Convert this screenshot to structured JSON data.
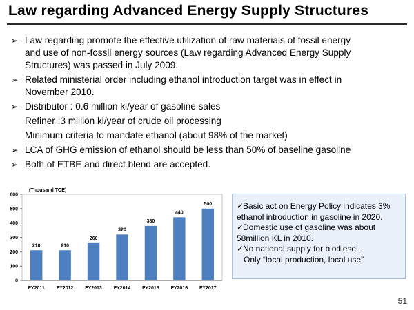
{
  "slide": {
    "title": "Law regarding Advanced Energy Supply Structures",
    "page_number": "51"
  },
  "bullets": [
    {
      "type": "bullet",
      "lines": [
        "Law regarding promote the effective utilization of raw materials of fossil energy",
        "and use of non-fossil energy sources (Law regarding Advanced Energy Supply",
        "Structures) was passed in July 2009."
      ]
    },
    {
      "type": "bullet",
      "lines": [
        "Related ministerial order including ethanol introduction target was in effect in",
        "November 2010."
      ]
    },
    {
      "type": "bullet",
      "lines": [
        "Distributor : 0.6 million kl/year of gasoline sales"
      ]
    },
    {
      "type": "indent",
      "lines": [
        "Refiner :3 million kl/year of crude oil processing"
      ]
    },
    {
      "type": "indent",
      "lines": [
        "Minimum criteria to mandate ethanol (about 98% of the market)"
      ]
    },
    {
      "type": "bullet",
      "lines": [
        "LCA of GHG emission of ethanol should be less than 50% of baseline gasoline"
      ]
    },
    {
      "type": "bullet",
      "lines": [
        "Both of ETBE and direct blend are accepted."
      ]
    }
  ],
  "info_box": {
    "lines": [
      {
        "check": true,
        "text": "Basic act on Energy Policy indicates 3%"
      },
      {
        "check": false,
        "text": "ethanol introduction in gasoline in 2020."
      },
      {
        "check": true,
        "text": "Domestic use of gasoline was about"
      },
      {
        "check": false,
        "text": "58million KL in 2010."
      },
      {
        "check": true,
        "text": "No national supply for biodiesel."
      },
      {
        "check": false,
        "sub": true,
        "text": "Only “local production, local use”"
      }
    ]
  },
  "chart_data": {
    "type": "bar",
    "title": "",
    "unit_label": "(Thousand TOE)",
    "categories": [
      "FY2011",
      "FY2012",
      "FY2013",
      "FY2014",
      "FY2015",
      "FY2016",
      "FY2017"
    ],
    "values": [
      210,
      210,
      260,
      320,
      380,
      440,
      500
    ],
    "ylim": [
      0,
      600
    ],
    "yticks": [
      0,
      100,
      200,
      300,
      400,
      500,
      600
    ],
    "grid": false,
    "bar_color": "#4e7fc0"
  }
}
